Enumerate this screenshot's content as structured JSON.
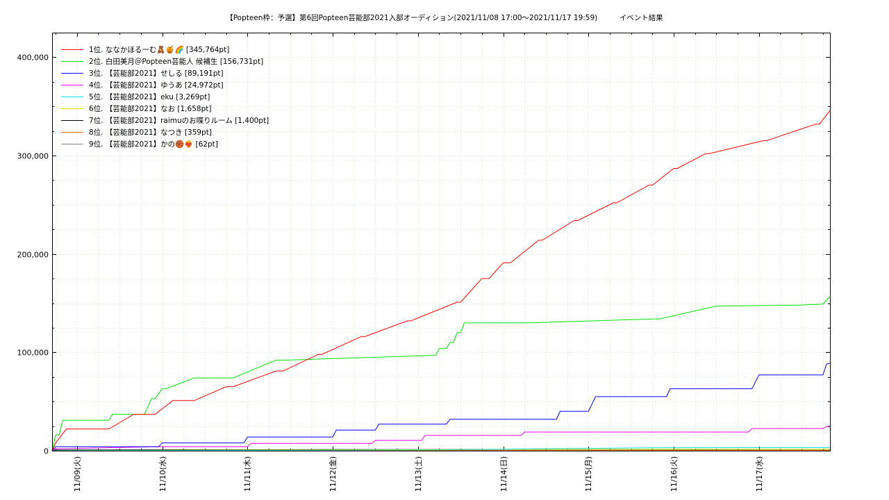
{
  "chart_data": {
    "type": "line",
    "title": "【Popteen枠：予選】第6回Popteen芸能部2021入部オーディション(2021/11/08 17:00〜2021/11/17 19:59)　　　イベント結果",
    "xlabel": "",
    "ylabel": "",
    "x_range": [
      "2021/11/08 17:00",
      "2021/11/17 19:59"
    ],
    "ylim": [
      0,
      425000
    ],
    "yticks": [
      0,
      100000,
      200000,
      300000,
      400000
    ],
    "ytick_labels": [
      "0",
      "100,000",
      "200,000",
      "300,000",
      "400,000"
    ],
    "xticks": [
      "2021-11-09",
      "2021-11-10",
      "2021-11-11",
      "2021-11-12",
      "2021-11-13",
      "2021-11-14",
      "2021-11-15",
      "2021-11-16",
      "2021-11-17"
    ],
    "xtick_labels": [
      "11/09(火)",
      "11/10(水)",
      "11/11(木)",
      "11/12(金)",
      "11/13(土)",
      "11/14(日)",
      "11/15(月)",
      "11/16(火)",
      "11/17(水)"
    ],
    "grid": true,
    "legend_position": "top-left",
    "series": [
      {
        "name": "1位. ななかほるーむ🧸🍯🌈 [345,764pt]",
        "color": "#ff0000",
        "x": [
          "2021-11-08 17:00",
          "2021-11-08 18:00",
          "2021-11-08 21:00",
          "2021-11-09 09:00",
          "2021-11-09 16:00",
          "2021-11-09 22:00",
          "2021-11-10 03:00",
          "2021-11-10 09:00",
          "2021-11-10 18:00",
          "2021-11-10 20:00",
          "2021-11-11 08:00",
          "2021-11-11 10:00",
          "2021-11-11 20:00",
          "2021-11-11 21:00",
          "2021-11-12 08:00",
          "2021-11-12 09:00",
          "2021-11-12 21:00",
          "2021-11-12 22:00",
          "2021-11-13 11:00",
          "2021-11-13 12:00",
          "2021-11-13 18:00",
          "2021-11-13 20:00",
          "2021-11-14 00:00",
          "2021-11-14 02:00",
          "2021-11-14 10:00",
          "2021-11-14 11:00",
          "2021-11-14 20:00",
          "2021-11-14 21:00",
          "2021-11-15 07:00",
          "2021-11-15 08:00",
          "2021-11-15 17:00",
          "2021-11-15 18:00",
          "2021-11-16 00:00",
          "2021-11-16 01:00",
          "2021-11-16 09:00",
          "2021-11-16 10:00",
          "2021-11-17 01:00",
          "2021-11-17 02:00",
          "2021-11-17 16:00",
          "2021-11-17 17:00",
          "2021-11-17 19:59"
        ],
        "values": [
          0,
          8000,
          22000,
          22000,
          37000,
          37000,
          51000,
          51000,
          65000,
          65000,
          81000,
          81000,
          98000,
          98000,
          116000,
          116000,
          132000,
          132000,
          151000,
          151000,
          175000,
          175000,
          191000,
          191000,
          214000,
          214000,
          234000,
          234000,
          252000,
          252000,
          270000,
          270000,
          287000,
          287000,
          302000,
          302000,
          315000,
          315000,
          332000,
          332000,
          345764
        ]
      },
      {
        "name": "2位. 白田美月＠Popteen芸能人 候補生 [156,731pt]",
        "color": "#00e000",
        "x": [
          "2021-11-08 17:00",
          "2021-11-08 18:00",
          "2021-11-08 19:00",
          "2021-11-08 20:00",
          "2021-11-09 09:00",
          "2021-11-09 10:00",
          "2021-11-09 19:00",
          "2021-11-09 21:00",
          "2021-11-09 22:00",
          "2021-11-10 00:00",
          "2021-11-10 01:00",
          "2021-11-10 09:00",
          "2021-11-10 18:00",
          "2021-11-10 20:00",
          "2021-11-11 08:00",
          "2021-11-11 10:00",
          "2021-11-13 05:00",
          "2021-11-13 06:00",
          "2021-11-13 08:00",
          "2021-11-13 09:00",
          "2021-11-13 10:00",
          "2021-11-13 11:00",
          "2021-11-13 12:00",
          "2021-11-13 13:00",
          "2021-11-14 05:00",
          "2021-11-14 07:00",
          "2021-11-15 19:00",
          "2021-11-15 20:00",
          "2021-11-16 12:00",
          "2021-11-16 13:00",
          "2021-11-17 10:00",
          "2021-11-17 11:00",
          "2021-11-17 18:00",
          "2021-11-17 19:59"
        ],
        "values": [
          0,
          16000,
          16000,
          31000,
          31000,
          37000,
          37000,
          53000,
          53000,
          63000,
          63000,
          74000,
          74000,
          74000,
          92000,
          92000,
          97000,
          104000,
          104000,
          110000,
          110000,
          120000,
          120000,
          130000,
          130000,
          130000,
          134000,
          134000,
          147000,
          147000,
          148000,
          148000,
          149000,
          156731
        ]
      },
      {
        "name": "3位. 【芸能部2021】せしる [89,191pt]",
        "color": "#0000ff",
        "x": [
          "2021-11-08 17:00",
          "2021-11-08 18:00",
          "2021-11-09 23:00",
          "2021-11-10 00:00",
          "2021-11-10 23:00",
          "2021-11-11 00:00",
          "2021-11-12 00:00",
          "2021-11-12 01:00",
          "2021-11-12 12:00",
          "2021-11-12 13:00",
          "2021-11-13 08:00",
          "2021-11-13 09:00",
          "2021-11-14 15:00",
          "2021-11-14 16:00",
          "2021-11-15 00:00",
          "2021-11-15 02:00",
          "2021-11-15 22:00",
          "2021-11-15 23:00",
          "2021-11-16 22:00",
          "2021-11-17 00:00",
          "2021-11-17 18:00",
          "2021-11-17 19:00",
          "2021-11-17 19:59"
        ],
        "values": [
          0,
          4000,
          4000,
          8000,
          8000,
          14000,
          14000,
          21000,
          21000,
          27000,
          27000,
          32000,
          32000,
          40000,
          40000,
          55000,
          55000,
          63000,
          63000,
          77000,
          77000,
          88000,
          89191
        ]
      },
      {
        "name": "4位. 【芸能部2021】ゆうあ [24,972pt]",
        "color": "#ff00ff",
        "x": [
          "2021-11-08 17:00",
          "2021-11-08 18:00",
          "2021-11-09 23:00",
          "2021-11-11 00:00",
          "2021-11-11 01:00",
          "2021-11-12 11:00",
          "2021-11-12 12:00",
          "2021-11-13 01:00",
          "2021-11-13 02:00",
          "2021-11-14 05:00",
          "2021-11-14 06:00",
          "2021-11-16 21:00",
          "2021-11-16 22:00",
          "2021-11-17 18:00",
          "2021-11-17 19:00",
          "2021-11-17 19:59"
        ],
        "values": [
          0,
          2000,
          4000,
          4000,
          7500,
          7500,
          10500,
          10500,
          15500,
          15500,
          19000,
          19000,
          22500,
          22500,
          24500,
          24972
        ]
      },
      {
        "name": "5位. 【芸能部2021】eku [3,269pt]",
        "color": "#00e0e0",
        "x": [
          "2021-11-08 17:00",
          "2021-11-13 06:00",
          "2021-11-14 06:00",
          "2021-11-15 18:00",
          "2021-11-17 19:59"
        ],
        "values": [
          0,
          800,
          1800,
          3000,
          3269
        ]
      },
      {
        "name": "6位. 【芸能部2021】なお [1,658pt]",
        "color": "#e0e000",
        "x": [
          "2021-11-08 17:00",
          "2021-11-11 00:00",
          "2021-11-15 00:00",
          "2021-11-17 19:59"
        ],
        "values": [
          0,
          800,
          1500,
          1658
        ]
      },
      {
        "name": "7位. 【芸能部2021】raimuのお喋りルーム [1,400pt]",
        "color": "#000000",
        "x": [
          "2021-11-08 17:00",
          "2021-11-08 18:00",
          "2021-11-12 00:00",
          "2021-11-17 19:59"
        ],
        "values": [
          0,
          800,
          1200,
          1400
        ]
      },
      {
        "name": "8位. 【芸能部2021】なつき [359pt]",
        "color": "#ff6a00",
        "x": [
          "2021-11-08 17:00",
          "2021-11-10 00:00",
          "2021-11-17 19:59"
        ],
        "values": [
          0,
          300,
          359
        ]
      },
      {
        "name": "9位. 【芸能部2021】かの🏀❤️‍🔥 [62pt]",
        "color": "#808080",
        "x": [
          "2021-11-08 17:00",
          "2021-11-12 00:00",
          "2021-11-17 19:59"
        ],
        "values": [
          0,
          40,
          62
        ]
      }
    ]
  }
}
